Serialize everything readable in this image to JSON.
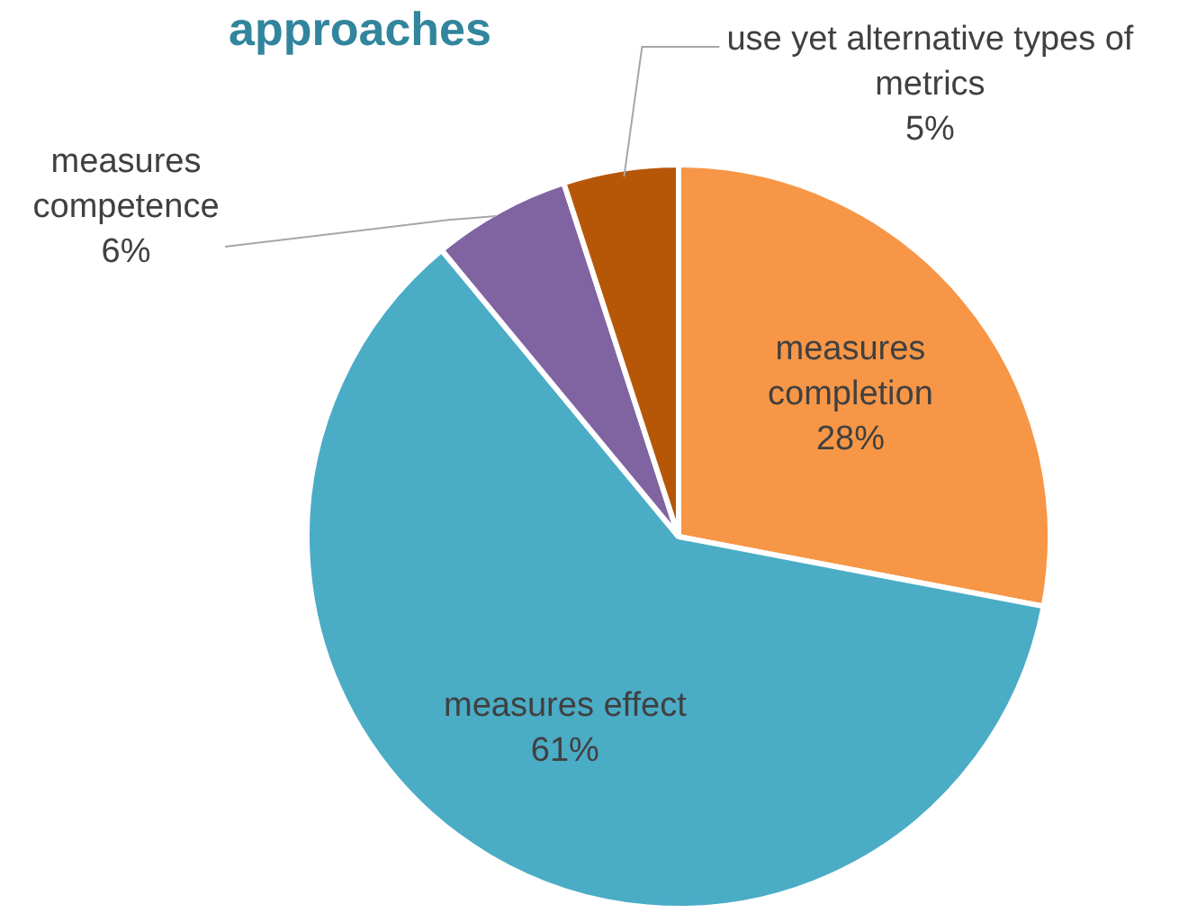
{
  "chart_data": {
    "type": "pie",
    "title": "approaches",
    "categories": [
      "measures completion",
      "measures effect",
      "measures competence",
      "use yet alternative types of metrics"
    ],
    "values": [
      28,
      61,
      6,
      5
    ],
    "value_labels": [
      "28%",
      "61%",
      "6%",
      "5%"
    ],
    "colors": [
      "#f79646",
      "#4bacc6",
      "#8064a2",
      "#b65708"
    ],
    "legend": false
  }
}
